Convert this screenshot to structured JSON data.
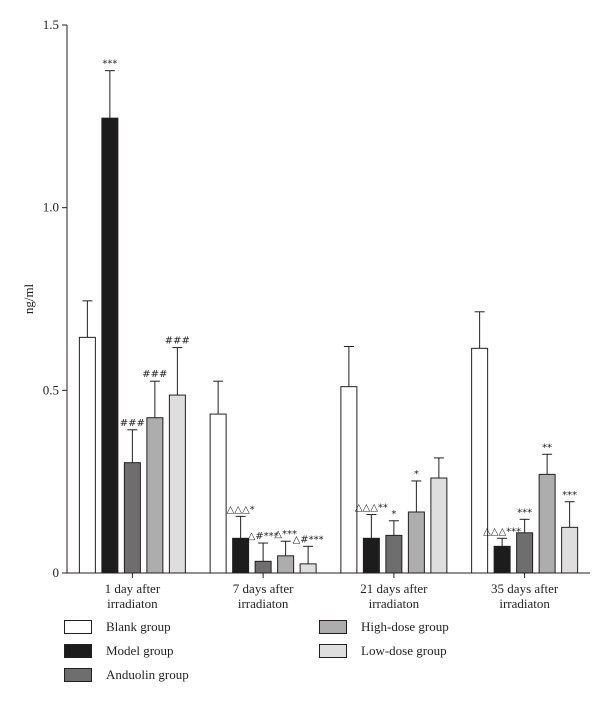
{
  "chart_data": {
    "type": "bar",
    "ylabel": "ng/ml",
    "xlabel": "",
    "ylim": [
      0,
      1.5
    ],
    "yticks": [
      "0",
      "0.5",
      "1.0",
      "1.5"
    ],
    "categories": [
      [
        "1 day after",
        "irradiaton"
      ],
      [
        "7 days after",
        "irradiaton"
      ],
      [
        "21 days after",
        "irradiaton"
      ],
      [
        "35 days after",
        "irradiaton"
      ]
    ],
    "series": [
      {
        "name": "Blank group",
        "color": "#ffffff",
        "values": [
          0.645,
          0.435,
          0.51,
          0.615
        ],
        "errors": [
          0.1,
          0.09,
          0.11,
          0.1
        ],
        "annotations": [
          "",
          "",
          "",
          ""
        ]
      },
      {
        "name": "Model group",
        "color": "#1c1c1c",
        "values": [
          1.245,
          0.095,
          0.095,
          0.073
        ],
        "errors": [
          0.13,
          0.06,
          0.065,
          0.022
        ],
        "annotations": [
          "***",
          "△△△*",
          "△△△**",
          "△△△***"
        ]
      },
      {
        "name": "Anduolin group",
        "color": "#6e6e6e",
        "values": [
          0.302,
          0.032,
          0.103,
          0.11
        ],
        "errors": [
          0.09,
          0.05,
          0.04,
          0.037
        ],
        "annotations": [
          "###",
          "△#***",
          "*",
          "***"
        ]
      },
      {
        "name": "High-dose group",
        "color": "#adadad",
        "values": [
          0.425,
          0.047,
          0.167,
          0.27
        ],
        "errors": [
          0.1,
          0.04,
          0.085,
          0.055
        ],
        "annotations": [
          "###",
          "△***",
          "*",
          "**"
        ]
      },
      {
        "name": "Low-dose group",
        "color": "#dedede",
        "values": [
          0.487,
          0.025,
          0.26,
          0.125
        ],
        "errors": [
          0.13,
          0.048,
          0.055,
          0.07
        ],
        "annotations": [
          "###",
          "△#***",
          "",
          "***"
        ]
      }
    ],
    "legend_position": "bottom"
  }
}
